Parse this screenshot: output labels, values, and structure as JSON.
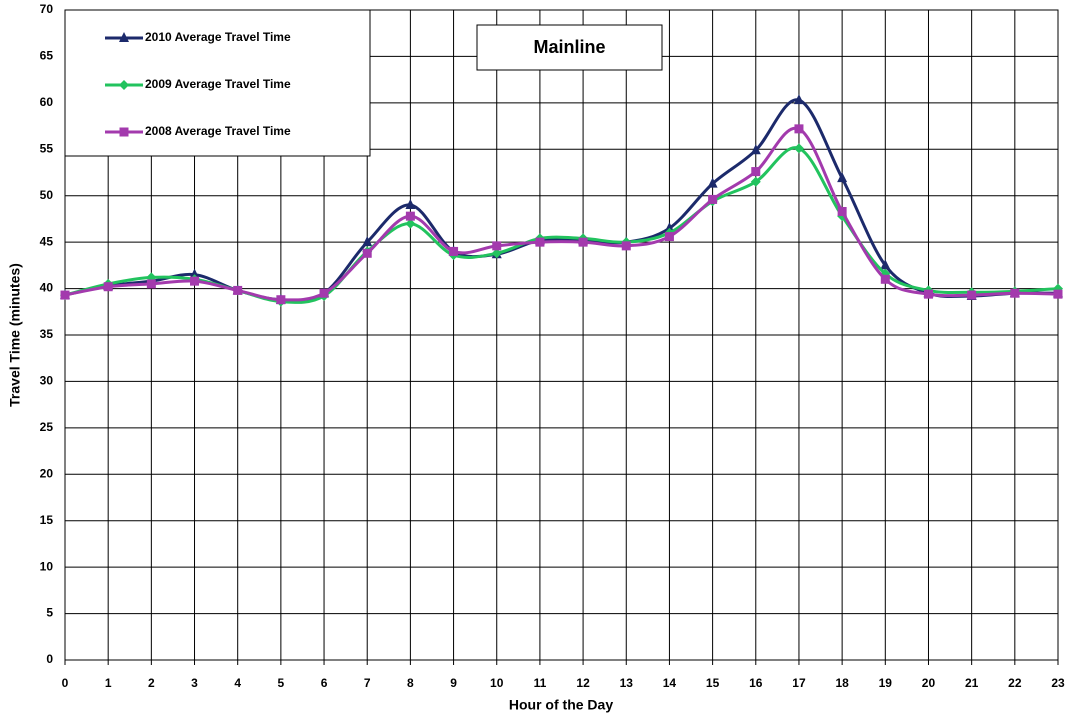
{
  "chart_data": {
    "type": "line",
    "title": "Mainline",
    "x_label": "Hour of the Day",
    "y_label": "Travel Time (minutes)",
    "x": [
      0,
      1,
      2,
      3,
      4,
      5,
      6,
      7,
      8,
      9,
      10,
      11,
      12,
      13,
      14,
      15,
      16,
      17,
      18,
      19,
      20,
      21,
      22,
      23
    ],
    "xlim": [
      0,
      23
    ],
    "xticks": [
      0,
      1,
      2,
      3,
      4,
      5,
      6,
      7,
      8,
      9,
      10,
      11,
      12,
      13,
      14,
      15,
      16,
      17,
      18,
      19,
      20,
      21,
      22,
      23
    ],
    "ylim": [
      0,
      70
    ],
    "yticks": [
      0,
      5,
      10,
      15,
      20,
      25,
      30,
      35,
      40,
      45,
      50,
      55,
      60,
      65,
      70
    ],
    "grid": true,
    "legend": "upper-left",
    "series": [
      {
        "name": "2010 Average Travel Time",
        "color": "#1c2a6b",
        "marker": "triangle",
        "values": [
          39.3,
          40.3,
          40.8,
          41.5,
          39.8,
          38.8,
          39.5,
          45,
          49,
          44,
          43.7,
          45.2,
          45.2,
          45,
          46.5,
          51.3,
          54.9,
          60.3,
          51.9,
          42.5,
          39.5,
          39.2,
          39.5,
          39.5
        ]
      },
      {
        "name": "2009 Average Travel Time",
        "color": "#22c35e",
        "marker": "diamond",
        "values": [
          39.3,
          40.5,
          41.2,
          41,
          39.8,
          38.6,
          39.2,
          44,
          47,
          43.6,
          43.8,
          45.4,
          45.4,
          45,
          46,
          49.4,
          51.5,
          55.1,
          47.8,
          41.6,
          39.8,
          39.6,
          39.7,
          40
        ]
      },
      {
        "name": "2008 Average Travel Time",
        "color": "#a33aad",
        "marker": "square",
        "values": [
          39.3,
          40.2,
          40.5,
          40.8,
          39.8,
          38.8,
          39.5,
          43.8,
          47.8,
          44,
          44.6,
          45,
          45,
          44.6,
          45.6,
          49.6,
          52.6,
          57.2,
          48.3,
          41,
          39.4,
          39.3,
          39.5,
          39.4
        ]
      }
    ]
  }
}
